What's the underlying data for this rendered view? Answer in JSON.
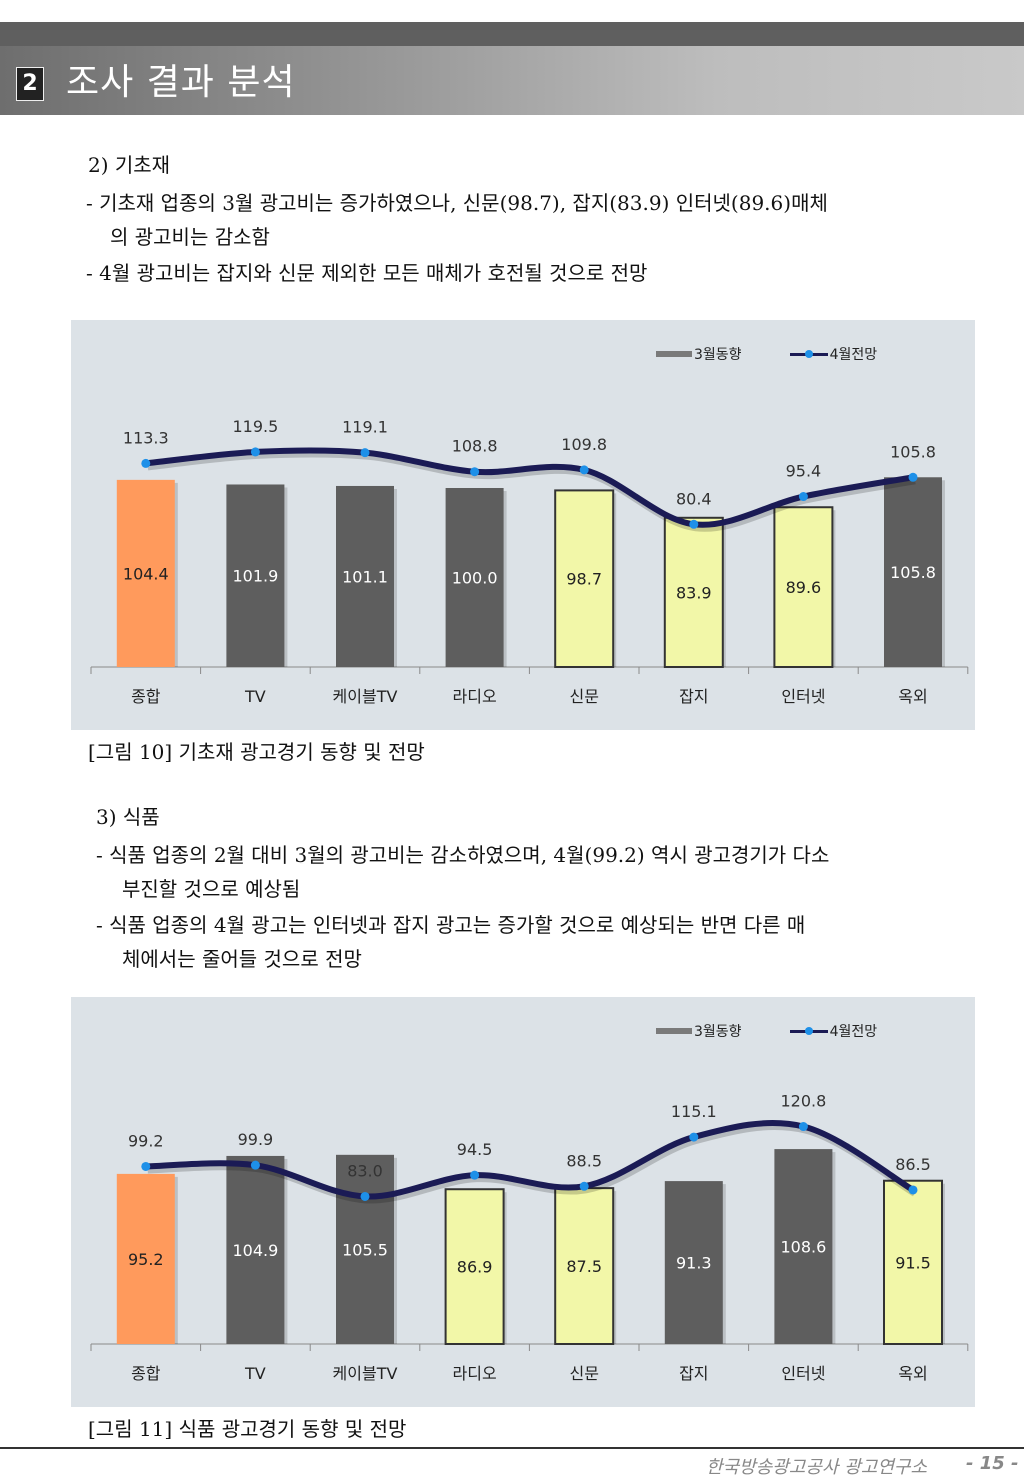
{
  "header": {
    "section_number": "2",
    "section_title": "조사 결과 분석"
  },
  "section1": {
    "heading": "2) 기초재",
    "bullets": [
      "-  기초재 업종의 3월 광고비는  증가하였으나, 신문(98.7), 잡지(83.9) 인터넷(89.6)매체",
      "의  광고비는 감소함",
      "-  4월 광고비는 잡지와 신문 제외한 모든 매체가  호전될 것으로 전망"
    ],
    "caption": "[그림 10] 기초재 광고경기 동향 및 전망"
  },
  "section2": {
    "heading": "3) 식품",
    "bullets": [
      "-  식품 업종의 2월 대비 3월의 광고비는 감소하였으며, 4월(99.2) 역시 광고경기가 다소",
      "부진할 것으로 예상됨",
      "-  식품 업종의 4월 광고는 인터넷과 잡지 광고는 증가할 것으로 예상되는 반면 다른 매",
      "체에서는 줄어들 것으로 전망"
    ],
    "caption": "[그림 11] 식품 광고경기 동향 및 전망"
  },
  "footer": {
    "org": "한국방송광고공사 광고연구소",
    "page": "- 15 -"
  },
  "colors": {
    "bar_dark": "#5e5e5e",
    "bar_orange": "#ff9a5c",
    "bar_yellow": "#f2f7a8",
    "line": "#1b1b55",
    "marker": "#1e90e8",
    "chart_bg": "#dce2e7"
  },
  "chart_data": [
    {
      "type": "bar+line",
      "title": "기초재 광고경기 동향 및 전망",
      "categories": [
        "종합",
        "TV",
        "케이블TV",
        "라디오",
        "신문",
        "잡지",
        "인터넷",
        "옥외"
      ],
      "legend": [
        "3월동향",
        "4월전망"
      ],
      "legend_position": "top-right",
      "series": [
        {
          "name": "3월동향",
          "kind": "bar",
          "values": [
            104.4,
            101.9,
            101.1,
            100.0,
            98.7,
            83.9,
            89.6,
            105.8
          ],
          "bar_styles": [
            "orange",
            "dark",
            "dark",
            "dark",
            "yellow",
            "yellow",
            "yellow",
            "dark"
          ]
        },
        {
          "name": "4월전망",
          "kind": "line",
          "values": [
            113.3,
            119.5,
            119.1,
            108.8,
            109.8,
            80.4,
            95.4,
            105.8
          ]
        }
      ],
      "grid": false
    },
    {
      "type": "bar+line",
      "title": "식품 광고경기 동향 및 전망",
      "categories": [
        "종합",
        "TV",
        "케이블TV",
        "라디오",
        "신문",
        "잡지",
        "인터넷",
        "옥외"
      ],
      "legend": [
        "3월동향",
        "4월전망"
      ],
      "legend_position": "top-right",
      "series": [
        {
          "name": "3월동향",
          "kind": "bar",
          "values": [
            95.2,
            104.9,
            105.5,
            86.9,
            87.5,
            91.3,
            108.6,
            91.5
          ],
          "bar_styles": [
            "orange",
            "dark",
            "dark",
            "yellow",
            "yellow",
            "dark",
            "dark",
            "yellow"
          ]
        },
        {
          "name": "4월전망",
          "kind": "line",
          "values": [
            99.2,
            99.9,
            83.0,
            94.5,
            88.5,
            115.1,
            120.8,
            86.5
          ]
        }
      ],
      "grid": false
    }
  ]
}
